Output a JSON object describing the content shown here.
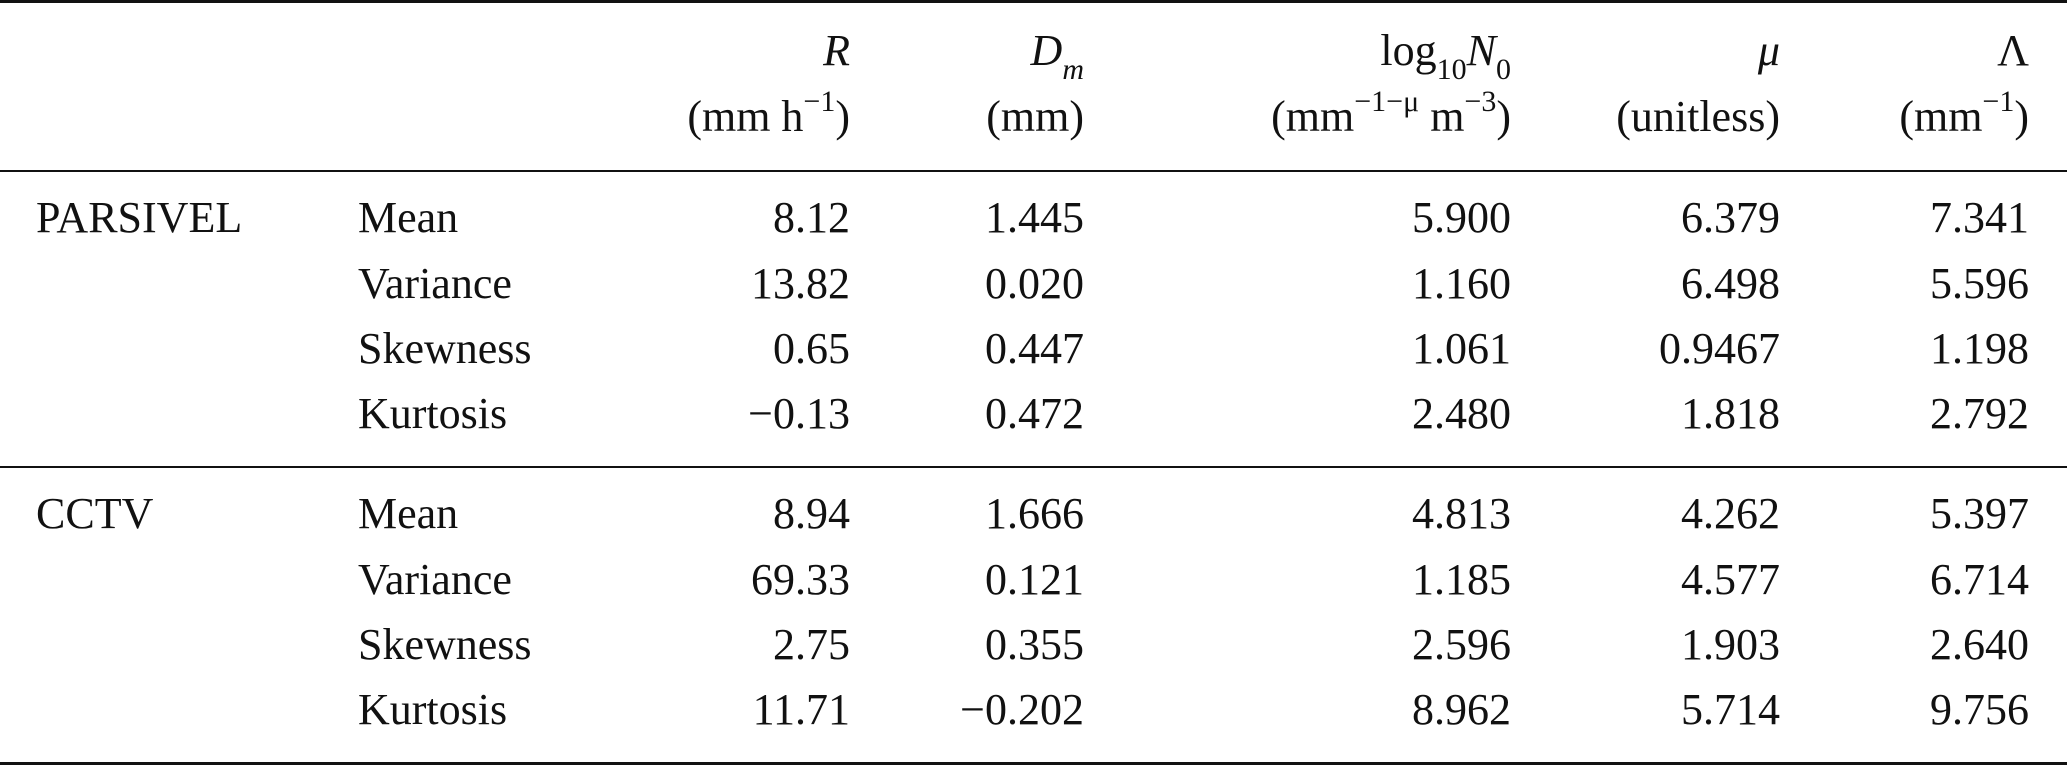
{
  "table": {
    "header": {
      "R": {
        "symbol": "R",
        "unit_pre": "(mm h",
        "unit_sup": "−1",
        "unit_post": ")"
      },
      "Dm": {
        "symbol": "D",
        "symbol_sub": "m",
        "unit": "(mm)"
      },
      "N0": {
        "func": "log",
        "func_sub": "10",
        "symbol": "N",
        "symbol_sub": "0",
        "unit_pre": "(mm",
        "unit_sup1": "−1−μ",
        "unit_mid": " m",
        "unit_sup2": "−3",
        "unit_post": ")"
      },
      "mu": {
        "symbol": "μ",
        "unit": "(unitless)"
      },
      "Lambda": {
        "symbol": "Λ",
        "unit_pre": "(mm",
        "unit_sup": "−1",
        "unit_post": ")"
      }
    },
    "groups": [
      {
        "name": "PARSIVEL",
        "rows": [
          {
            "stat": "Mean",
            "R": "8.12",
            "Dm": "1.445",
            "N0": "5.900",
            "mu": "6.379",
            "Lambda": "7.341"
          },
          {
            "stat": "Variance",
            "R": "13.82",
            "Dm": "0.020",
            "N0": "1.160",
            "mu": "6.498",
            "Lambda": "5.596"
          },
          {
            "stat": "Skewness",
            "R": "0.65",
            "Dm": "0.447",
            "N0": "1.061",
            "mu": "0.9467",
            "Lambda": "1.198"
          },
          {
            "stat": "Kurtosis",
            "R": "−0.13",
            "Dm": "0.472",
            "N0": "2.480",
            "mu": "1.818",
            "Lambda": "2.792"
          }
        ]
      },
      {
        "name": "CCTV",
        "rows": [
          {
            "stat": "Mean",
            "R": "8.94",
            "Dm": "1.666",
            "N0": "4.813",
            "mu": "4.262",
            "Lambda": "5.397"
          },
          {
            "stat": "Variance",
            "R": "69.33",
            "Dm": "0.121",
            "N0": "1.185",
            "mu": "4.577",
            "Lambda": "6.714"
          },
          {
            "stat": "Skewness",
            "R": "2.75",
            "Dm": "0.355",
            "N0": "2.596",
            "mu": "1.903",
            "Lambda": "2.640"
          },
          {
            "stat": "Kurtosis",
            "R": "11.71",
            "Dm": "−0.202",
            "N0": "8.962",
            "mu": "5.714",
            "Lambda": "9.756"
          }
        ]
      }
    ]
  }
}
